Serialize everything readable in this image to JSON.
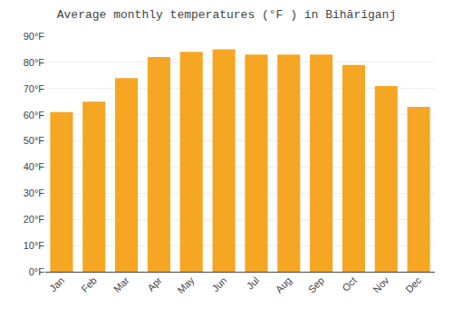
{
  "chart_data": {
    "type": "bar",
    "title": "Average monthly temperatures (°F ) in Bihārīganj",
    "categories": [
      "Jan",
      "Feb",
      "Mar",
      "Apr",
      "May",
      "Jun",
      "Jul",
      "Aug",
      "Sep",
      "Oct",
      "Nov",
      "Dec"
    ],
    "values": [
      61,
      65,
      74,
      82,
      84,
      85,
      83,
      83,
      83,
      79,
      71,
      63
    ],
    "color": "#F5A623",
    "ylim": [
      0,
      90
    ],
    "yticks": [
      {
        "value": 0,
        "label": "0°F"
      },
      {
        "value": 10,
        "label": "10°F"
      },
      {
        "value": 20,
        "label": "20°F"
      },
      {
        "value": 30,
        "label": "30°F"
      },
      {
        "value": 40,
        "label": "40°F"
      },
      {
        "value": 50,
        "label": "50°F"
      },
      {
        "value": 60,
        "label": "60°F"
      },
      {
        "value": 70,
        "label": "70°F"
      },
      {
        "value": 80,
        "label": "80°F"
      },
      {
        "value": 90,
        "label": "90°F"
      }
    ],
    "grid": true
  }
}
